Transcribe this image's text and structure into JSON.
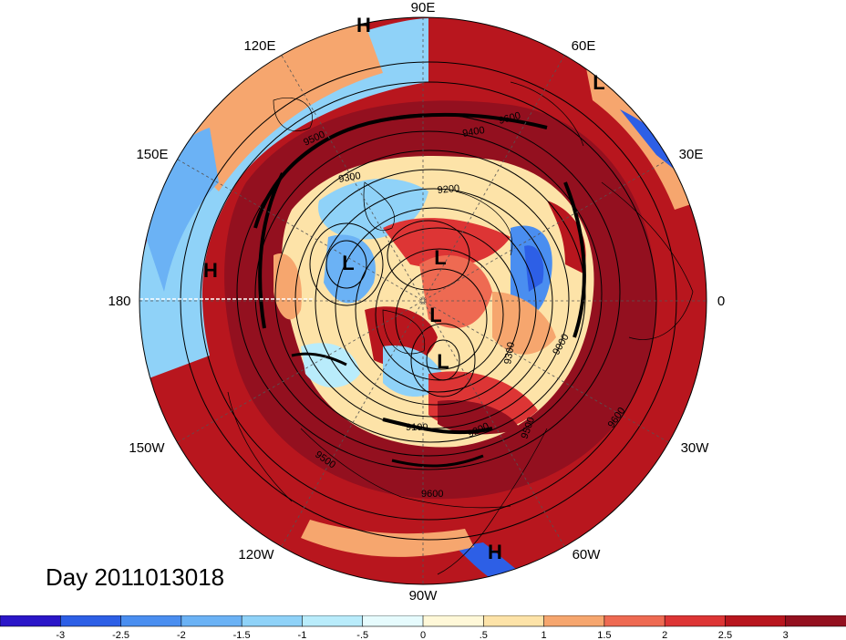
{
  "title": "Day 2011013018",
  "longitude_labels": [
    {
      "text": "90E"
    },
    {
      "text": "120E"
    },
    {
      "text": "60E"
    },
    {
      "text": "150E"
    },
    {
      "text": "30E"
    },
    {
      "text": "180"
    },
    {
      "text": "0"
    },
    {
      "text": "150W"
    },
    {
      "text": "30W"
    },
    {
      "text": "120W"
    },
    {
      "text": "60W"
    },
    {
      "text": "90W"
    }
  ],
  "pressure_centers": [
    "H",
    "L",
    "H",
    "L",
    "L",
    "L",
    "L",
    "H"
  ],
  "contour_labels": [
    "9600",
    "9500",
    "9400",
    "9300",
    "9200",
    "9000",
    "9500",
    "9200",
    "9100",
    "9300",
    "9600",
    "9500",
    "9600"
  ],
  "colorbar": {
    "ticks": [
      "-3",
      "-2.5",
      "-2",
      "-1.5",
      "-1",
      "-.5",
      "0",
      ".5",
      "1",
      "1.5",
      "2",
      "2.5",
      "3"
    ],
    "colors": [
      "#2b16c8",
      "#2d5fe6",
      "#4a8ef0",
      "#6bb2f5",
      "#8fd2f8",
      "#b9ecfb",
      "#e6fbfd",
      "#fff8d8",
      "#fde3a8",
      "#f6a66e",
      "#ee6a52",
      "#dd3535",
      "#b8161e",
      "#93101f"
    ]
  }
}
